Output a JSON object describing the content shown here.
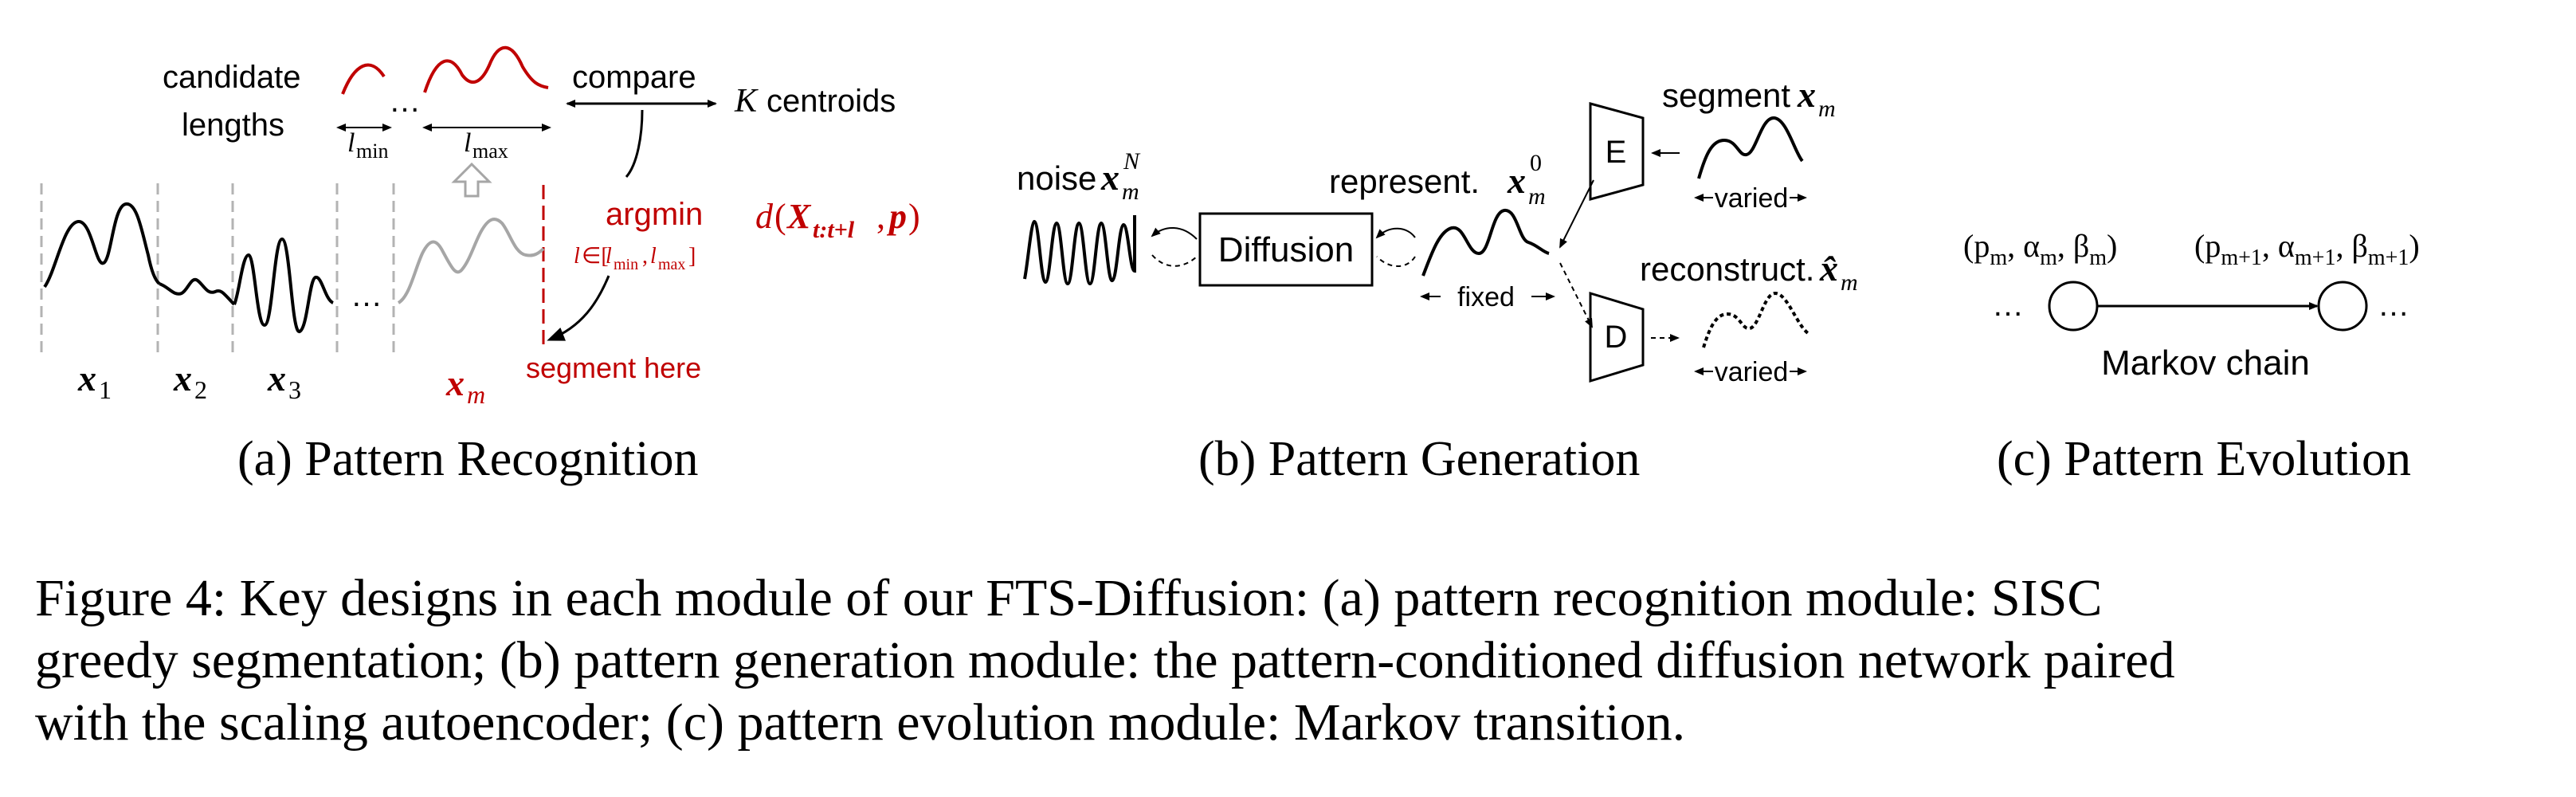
{
  "colors": {
    "black": "#000000",
    "red": "#c00000",
    "gray": "#a6a6a6",
    "dashed_gray": "#b3b3b3"
  },
  "panel_a": {
    "candidate_label_1": "candidate",
    "candidate_label_2": "lengths",
    "ellipsis": "…",
    "l": "l",
    "min": "min",
    "max": "max",
    "compare": "compare",
    "k": "K",
    "centroids": "centroids",
    "argmin": "argmin",
    "argmin_sub_l": "l",
    "argmin_sub_in": "∈[",
    "argmin_sub_comma": ",",
    "argmin_sub_close": "]",
    "dist_d": "d",
    "dist_open": "(",
    "dist_X": "X",
    "dist_sub": "t:t+l",
    "dist_comma": ", ",
    "dist_p": "p",
    "dist_close": ")",
    "segment_here": "segment here",
    "x": "x",
    "x1": "1",
    "x2": "2",
    "x3": "3",
    "xm": "m",
    "dots": "…",
    "caption": "(a)  Pattern Recognition"
  },
  "panel_b": {
    "noise": "noise",
    "noise_x": "x",
    "noise_sup": "N",
    "noise_sub": "m",
    "diffusion": "Diffusion",
    "represent": "represent.",
    "rep_x": "x",
    "rep_sup": "0",
    "rep_sub": "m",
    "fixed": "fixed",
    "segment": "segment",
    "seg_x": "x",
    "seg_sub": "m",
    "encoder": "E",
    "decoder": "D",
    "varied_1": "varied",
    "reconstruct": "reconstruct.",
    "rec_x": "x̂",
    "rec_sub": "m",
    "varied_2": "varied",
    "caption": "(b)  Pattern Generation"
  },
  "panel_c": {
    "state_1": "(p",
    "state_1_sub": "m",
    "state_1_rest": ", α",
    "state_1_sub2": "m",
    "state_1_rest2": ", β",
    "state_1_sub3": "m",
    "state_1_close": ")",
    "state_2": "(p",
    "state_2_sub": "m+1",
    "state_2_rest": ", α",
    "state_2_sub2": "m+1",
    "state_2_rest2": ", β",
    "state_2_sub3": "m+1",
    "state_2_close": ")",
    "dots_left": "…",
    "dots_right": "…",
    "markov": "Markov chain",
    "caption": "(c)  Pattern Evolution"
  },
  "figure_caption": {
    "line1": "Figure 4: Key designs in each module of our FTS-Diffusion: (a) pattern recognition module: SISC",
    "line2": "greedy segmentation; (b) pattern generation module: the pattern-conditioned diffusion network paired",
    "line3": "with the scaling autoencoder; (c) pattern evolution module: Markov transition."
  }
}
